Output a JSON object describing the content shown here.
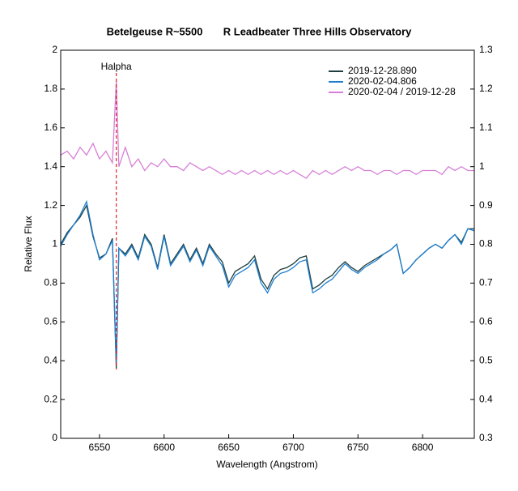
{
  "chart_data": {
    "type": "line",
    "title": "Betelgeuse R~5500       R Leadbeater Three Hills Observatory",
    "xlabel": "Wavelength (Angstrom)",
    "ylabel": "Relative Flux",
    "annotation": {
      "text": "Halpha",
      "x": 6563,
      "color": "#e02020"
    },
    "x": [
      6520,
      6525,
      6530,
      6535,
      6540,
      6545,
      6550,
      6555,
      6560,
      6563,
      6565,
      6570,
      6575,
      6580,
      6585,
      6590,
      6595,
      6600,
      6605,
      6610,
      6615,
      6620,
      6625,
      6630,
      6635,
      6640,
      6645,
      6650,
      6655,
      6660,
      6665,
      6670,
      6675,
      6680,
      6685,
      6690,
      6695,
      6700,
      6705,
      6710,
      6715,
      6720,
      6725,
      6730,
      6735,
      6740,
      6745,
      6750,
      6755,
      6760,
      6765,
      6770,
      6775,
      6780,
      6785,
      6790,
      6795,
      6800,
      6805,
      6810,
      6815,
      6820,
      6825,
      6830,
      6835,
      6840
    ],
    "series": [
      {
        "name": "2019-12-28.890",
        "color": "#1f3f3f",
        "values": [
          1.0,
          1.06,
          1.1,
          1.14,
          1.2,
          1.04,
          0.93,
          0.95,
          1.03,
          0.36,
          0.98,
          0.95,
          1.0,
          0.93,
          1.05,
          1.0,
          0.88,
          1.05,
          0.9,
          0.95,
          1.0,
          0.92,
          0.98,
          0.9,
          1.0,
          0.95,
          0.91,
          0.8,
          0.86,
          0.88,
          0.9,
          0.94,
          0.82,
          0.77,
          0.84,
          0.87,
          0.88,
          0.9,
          0.93,
          0.94,
          0.77,
          0.79,
          0.82,
          0.84,
          0.88,
          0.91,
          0.88,
          0.86,
          0.89,
          0.91,
          0.93,
          0.95,
          0.97,
          1.0,
          0.85,
          0.88,
          0.92,
          0.95,
          0.98,
          1.0,
          0.98,
          1.02,
          1.05,
          1.01,
          1.08,
          1.08
        ]
      },
      {
        "name": "2020-02-04.806",
        "color": "#1e7fd0",
        "values": [
          0.99,
          1.05,
          1.1,
          1.15,
          1.22,
          1.05,
          0.92,
          0.95,
          1.02,
          0.38,
          0.98,
          0.94,
          0.99,
          0.92,
          1.04,
          0.99,
          0.87,
          1.04,
          0.89,
          0.94,
          0.99,
          0.91,
          0.97,
          0.89,
          0.99,
          0.94,
          0.89,
          0.78,
          0.84,
          0.86,
          0.88,
          0.92,
          0.8,
          0.75,
          0.82,
          0.85,
          0.86,
          0.88,
          0.91,
          0.92,
          0.75,
          0.77,
          0.8,
          0.82,
          0.86,
          0.9,
          0.87,
          0.85,
          0.88,
          0.9,
          0.92,
          0.95,
          0.97,
          1.0,
          0.85,
          0.88,
          0.92,
          0.95,
          0.98,
          1.0,
          0.98,
          1.02,
          1.05,
          1.0,
          1.08,
          1.07
        ]
      },
      {
        "name": "2020-02-04 / 2019-12-28",
        "color": "#d67fd6",
        "axis": "y2",
        "values": [
          1.03,
          1.04,
          1.02,
          1.05,
          1.03,
          1.06,
          1.02,
          1.04,
          1.01,
          1.22,
          1.0,
          1.05,
          1.0,
          1.02,
          0.99,
          1.01,
          1.0,
          1.02,
          1.0,
          1.0,
          0.99,
          1.01,
          1.0,
          0.99,
          1.0,
          0.99,
          0.98,
          0.99,
          0.98,
          0.99,
          0.98,
          0.99,
          0.98,
          0.99,
          0.98,
          0.99,
          0.98,
          0.99,
          0.98,
          0.97,
          0.99,
          0.98,
          0.99,
          0.98,
          0.99,
          1.0,
          0.99,
          1.0,
          0.99,
          0.99,
          0.98,
          0.99,
          0.99,
          0.98,
          0.99,
          0.99,
          0.98,
          0.99,
          0.99,
          0.99,
          0.98,
          1.0,
          0.99,
          1.0,
          0.99,
          0.99
        ]
      }
    ],
    "xlim": [
      6520,
      6840
    ],
    "xticks": [
      6550,
      6600,
      6650,
      6700,
      6750,
      6800
    ],
    "ylim": [
      0,
      2
    ],
    "yticks": [
      0,
      0.2,
      0.4,
      0.6,
      0.8,
      1,
      1.2,
      1.4,
      1.6,
      1.8,
      2
    ],
    "y2lim": [
      0.3,
      1.3
    ],
    "y2ticks": [
      0.3,
      0.4,
      0.5,
      0.6,
      0.7,
      0.8,
      0.9,
      1,
      1.1,
      1.2,
      1.3
    ],
    "legend": "top-right"
  }
}
